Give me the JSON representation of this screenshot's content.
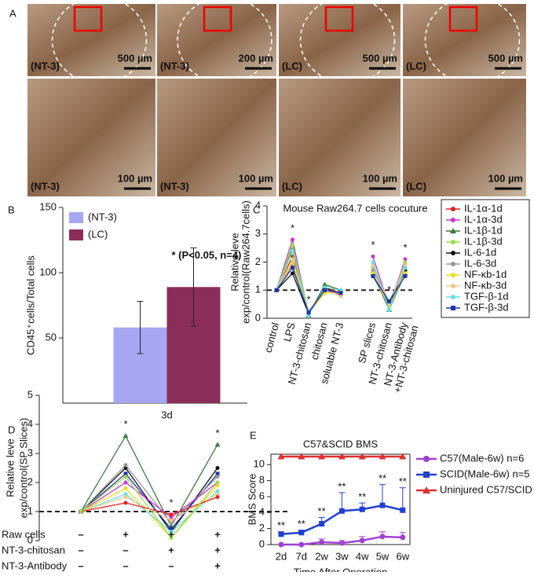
{
  "panel_labels": [
    "A",
    "B",
    "C",
    "D",
    "E"
  ],
  "images": [
    {
      "label": "(NT-3)",
      "scale": "500 µm"
    },
    {
      "label": "(NT-3)",
      "scale": "200 µm"
    },
    {
      "label": "(LC)",
      "scale": "500 µm"
    },
    {
      "label": "(LC)",
      "scale": "500 µm"
    },
    {
      "label": "(NT-3)",
      "scale": "100 µm"
    },
    {
      "label": "(NT-3)",
      "scale": "100 µm"
    },
    {
      "label": "(LC)",
      "scale": "100 µm"
    },
    {
      "label": "(LC)",
      "scale": "100 µm"
    }
  ],
  "chart_data": [
    {
      "type": "bar",
      "y_label": [
        "CD45⁺cells/Total cells"
      ],
      "categories": [
        "3d"
      ],
      "series": [
        {
          "name": "(NT-3)",
          "color": "#a6a6f2",
          "values": [
            58
          ],
          "errors": [
            20
          ]
        },
        {
          "name": "(LC)",
          "color": "#8b2f5a",
          "values": [
            89
          ],
          "errors": [
            30
          ]
        }
      ],
      "annotations": [
        "* (P<0.05, n=4)"
      ],
      "ylim": [
        0,
        150
      ],
      "yticks": [
        50,
        100,
        150
      ],
      "legend": "upper left"
    },
    {
      "type": "line",
      "title": "Mouse Raw264.7 cells cocuture",
      "y_label": [
        "Relative leve",
        "exp/control(Raw264.7cells)"
      ],
      "categories": [
        "control",
        "LPS",
        "NT-3-chitosan",
        "chitosan",
        "soluable NT-3",
        null,
        "SP slices",
        "NT-3-chitosan",
        "NT-3-Antibody\n+NT-3-chitosan"
      ],
      "ylim": [
        0,
        4
      ],
      "yticks": [
        0,
        1,
        2,
        3,
        4
      ],
      "reference_line": 1,
      "annotations": [
        "*",
        "*",
        "*",
        "*",
        "*"
      ],
      "legend": "right",
      "series": [
        {
          "name": "IL-1α-1d",
          "color": "#e02020",
          "marker": "circle",
          "values": [
            1,
            2.2,
            0.2,
            1.1,
            0.9,
            null,
            1.9,
            0.5,
            1.9
          ]
        },
        {
          "name": "IL-1α-3d",
          "color": "#cc33cc",
          "marker": "circle",
          "values": [
            1,
            2.8,
            0.15,
            1.0,
            0.8,
            null,
            2.2,
            0.4,
            2.1
          ]
        },
        {
          "name": "IL-1β-1d",
          "color": "#3a7a3a",
          "marker": "triangle",
          "values": [
            1,
            2.5,
            0.1,
            1.2,
            1.0,
            null,
            1.6,
            0.3,
            1.6
          ]
        },
        {
          "name": "IL-1β-3d",
          "color": "#99dd44",
          "marker": "circle",
          "values": [
            1,
            2.6,
            0.2,
            0.9,
            0.9,
            null,
            1.8,
            0.4,
            2.0
          ]
        },
        {
          "name": "IL-6-1d",
          "color": "#111111",
          "marker": "circle",
          "values": [
            1,
            1.6,
            0.15,
            1.1,
            0.8,
            null,
            1.5,
            0.5,
            1.7
          ]
        },
        {
          "name": "IL-6-3d",
          "color": "#999999",
          "marker": "circle",
          "values": [
            1,
            1.9,
            0.25,
            1.0,
            0.9,
            null,
            1.7,
            0.6,
            1.8
          ]
        },
        {
          "name": "NF-κb-1d",
          "color": "#eedd22",
          "marker": "circle",
          "values": [
            1,
            2.0,
            0.2,
            0.9,
            0.9,
            null,
            1.6,
            0.4,
            1.6
          ]
        },
        {
          "name": "NF-κb-3d",
          "color": "#f5c68a",
          "marker": "circle",
          "values": [
            1,
            2.1,
            0.2,
            1.0,
            0.8,
            null,
            1.9,
            0.5,
            1.9
          ]
        },
        {
          "name": "TGF-β-1d",
          "color": "#66e0e0",
          "marker": "circle",
          "values": [
            1,
            2.4,
            0.1,
            1.1,
            1.0,
            null,
            2.0,
            0.3,
            1.8
          ]
        },
        {
          "name": "TGF-β-3d",
          "color": "#2233aa",
          "marker": "square",
          "values": [
            1,
            1.8,
            0.2,
            1.0,
            0.9,
            null,
            1.5,
            0.6,
            1.5
          ]
        }
      ]
    },
    {
      "type": "line",
      "y_label": [
        "Relative leve",
        "exp/control(SP Slices)"
      ],
      "categories": [
        null,
        null,
        null,
        null
      ],
      "ylim": [
        0,
        5
      ],
      "yticks": [
        0,
        1,
        2,
        3,
        4,
        5
      ],
      "reference_line": 1,
      "annotations": [
        "*",
        "*",
        "*"
      ],
      "condition_table": [
        {
          "label": "Raw cells",
          "marks": [
            "–",
            "+",
            "+",
            "+"
          ]
        },
        {
          "label": "NT-3-chitosan",
          "marks": [
            "–",
            "–",
            "+",
            "+"
          ]
        },
        {
          "label": "NT-3-Antibody",
          "marks": [
            "–",
            "–",
            "–",
            "+"
          ]
        }
      ],
      "series": [
        {
          "color": "#3a7a3a",
          "marker": "triangle",
          "values": [
            1,
            3.6,
            0.5,
            3.3
          ]
        },
        {
          "color": "#111111",
          "marker": "circle",
          "values": [
            1,
            2.5,
            0.3,
            2.5
          ]
        },
        {
          "color": "#2233aa",
          "marker": "square",
          "values": [
            1,
            2.3,
            0.4,
            2.3
          ]
        },
        {
          "color": "#999999",
          "marker": "circle",
          "values": [
            1,
            2.6,
            0.6,
            2.2
          ]
        },
        {
          "color": "#cc33cc",
          "marker": "circle",
          "values": [
            1,
            2.0,
            0.8,
            2.0
          ]
        },
        {
          "color": "#eedd22",
          "marker": "circle",
          "values": [
            1,
            1.8,
            0.1,
            1.9
          ]
        },
        {
          "color": "#66e0e0",
          "marker": "circle",
          "values": [
            1,
            1.6,
            0.3,
            1.7
          ]
        },
        {
          "color": "#f5c68a",
          "marker": "circle",
          "values": [
            1,
            1.5,
            0.7,
            1.6
          ]
        },
        {
          "color": "#e02020",
          "marker": "circle",
          "values": [
            1,
            1.3,
            0.9,
            1.5
          ]
        },
        {
          "color": "#99dd44",
          "marker": "circle",
          "values": [
            1,
            2.2,
            0.1,
            2.0
          ]
        }
      ]
    },
    {
      "type": "line",
      "title": "C57&SCID BMS",
      "y_label": [
        "BMS Score"
      ],
      "x_label": "Time After Operation",
      "categories": [
        "2d",
        "7d",
        "2w",
        "3w",
        "4w",
        "5w",
        "6w"
      ],
      "ylim": [
        0,
        11.3
      ],
      "yticks": [
        0,
        2,
        4,
        6,
        8,
        10
      ],
      "annotations": [
        "**",
        "**",
        "**",
        "**",
        "**",
        "**",
        "**"
      ],
      "legend": "right",
      "series": [
        {
          "name": "C57(Male-6w) n=6",
          "color": "#a040d0",
          "marker": "circle",
          "values": [
            0,
            0,
            0.3,
            0.2,
            0.5,
            1.0,
            0.9
          ],
          "errors": [
            0,
            0,
            0.4,
            0.3,
            0.5,
            0.6,
            0.6
          ]
        },
        {
          "name": "SCID(Male-6w) n=5",
          "color": "#2040d0",
          "marker": "square",
          "values": [
            1.3,
            1.5,
            2.6,
            4.2,
            4.4,
            4.9,
            4.3
          ],
          "errors": [
            0.3,
            0.3,
            0.8,
            2.3,
            0.8,
            2.6,
            2.8
          ]
        },
        {
          "name": "Uninjured C57/SCID",
          "color": "#e03030",
          "marker": "triangle",
          "values": [
            11,
            11,
            11,
            11,
            11,
            11,
            11
          ]
        }
      ]
    }
  ]
}
